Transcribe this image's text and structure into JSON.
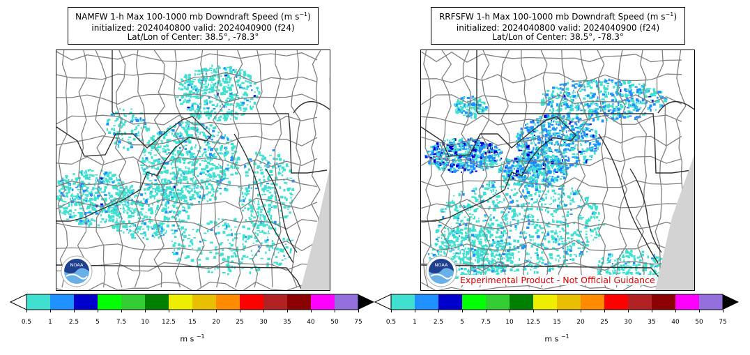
{
  "panels": [
    {
      "title_line1": "NAMFW 1-h Max 100-1000 mb Downdraft Speed (m s",
      "title_sup": "−1",
      "title_close": ")",
      "title_line2": "initialized: 2024040800 valid: 2024040900 (f24)",
      "title_line3": "Lat/Lon of Center: 38.5°, -78.3°",
      "logo_text": "NOAA"
    },
    {
      "title_line1": "RRFSFW 1-h Max 100-1000 mb Downdraft Speed (m s",
      "title_sup": "−1",
      "title_close": ")",
      "title_line2": "initialized: 2024040800 valid: 2024040900 (f24)",
      "title_line3": "Lat/Lon of Center: 38.5°, -78.3°",
      "logo_text": "NOAA",
      "watermark": "Experimental Product - Not Official Guidance"
    }
  ],
  "colorbar": {
    "ticks": [
      "0.5",
      "1",
      "2.5",
      "5",
      "7.5",
      "10",
      "12.5",
      "15",
      "20",
      "25",
      "30",
      "35",
      "40",
      "50",
      "75"
    ],
    "colors": [
      "#40e0d0",
      "#1e90ff",
      "#0000cd",
      "#00ff00",
      "#32cd32",
      "#008000",
      "#eeee00",
      "#e8c000",
      "#ff8c00",
      "#ff0000",
      "#b22222",
      "#8b0000",
      "#ff00ff",
      "#9370db"
    ],
    "over_color": "#000000",
    "unit": "m s",
    "unit_sup": "−1"
  }
}
